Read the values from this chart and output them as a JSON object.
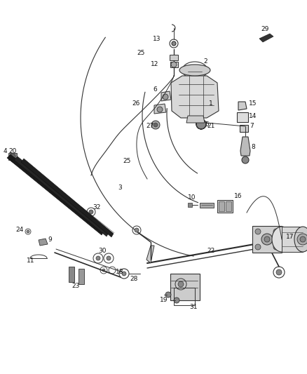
{
  "bg_color": "#ffffff",
  "line_color": "#333333",
  "label_color": "#111111",
  "label_fontsize": 6.5,
  "fig_width": 4.38,
  "fig_height": 5.33,
  "dpi": 100
}
